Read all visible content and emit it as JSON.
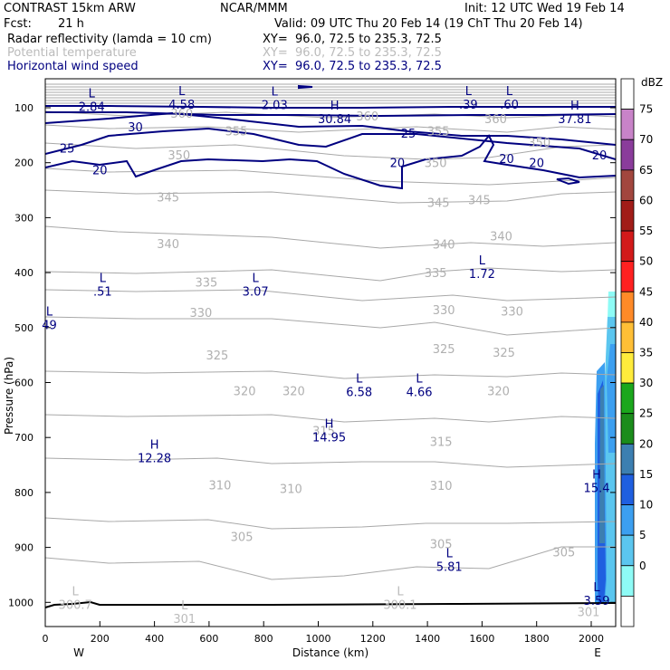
{
  "header": {
    "model": "CONTRAST 15km ARW",
    "org": "NCAR/MMM",
    "init": "Init: 12 UTC Wed 19 Feb 14",
    "fcst_label": "Fcst:",
    "fcst_value": "21 h",
    "valid": "Valid: 09 UTC Thu 20 Feb 14 (19 ChT Thu 20 Feb 14)",
    "fields": [
      {
        "name": "Radar reflectivity (lamda = 10 cm)",
        "xy": "XY=  96.0, 72.5 to 235.3, 72.5",
        "color": "#000000"
      },
      {
        "name": "Potential temperature",
        "xy": "XY=  96.0, 72.5 to 235.3, 72.5",
        "color": "#bbbbbb"
      },
      {
        "name": "Horizontal wind speed",
        "xy": "XY=  96.0, 72.5 to 235.3, 72.5",
        "color": "#000080"
      }
    ]
  },
  "chart_data": {
    "type": "cross-section",
    "xlabel": "Distance (km)",
    "ylabel": "Pressure (hPa)",
    "x_ticks": [
      "0",
      "200",
      "400",
      "600",
      "800",
      "1000",
      "1200",
      "1400",
      "1600",
      "1800",
      "2000"
    ],
    "x_end_labels": {
      "left": "W",
      "right": "E"
    },
    "y_ticks": [
      "100",
      "200",
      "300",
      "400",
      "500",
      "600",
      "700",
      "800",
      "900",
      "1000"
    ],
    "xlim": [
      0,
      2090
    ],
    "ylim": [
      1050,
      50
    ],
    "colorbar": {
      "unit": "dBZ",
      "labels": [
        "75",
        "70",
        "65",
        "60",
        "55",
        "50",
        "45",
        "40",
        "35",
        "30",
        "25",
        "20",
        "15",
        "10",
        "5",
        "0"
      ],
      "colors": [
        "#ffffff",
        "#c883c8",
        "#8a3c9b",
        "#a2463e",
        "#a11c18",
        "#d21a1a",
        "#ff2121",
        "#ff8a28",
        "#ffbf36",
        "#ffec3c",
        "#1ba71c",
        "#1b8c1b",
        "#3c7fb1",
        "#1f5fe0",
        "#3c9ff0",
        "#5bc6ef",
        "#8efbf6",
        "#ffffff"
      ]
    },
    "theta_labels": [
      {
        "text": "360",
        "x": 1180,
        "p": 115
      },
      {
        "text": "360",
        "x": 500,
        "p": 110
      },
      {
        "text": "355",
        "x": 700,
        "p": 142
      },
      {
        "text": "355",
        "x": 1440,
        "p": 142
      },
      {
        "text": "350",
        "x": 490,
        "p": 186
      },
      {
        "text": "350",
        "x": 1430,
        "p": 200
      },
      {
        "text": "350",
        "x": 1810,
        "p": 163
      },
      {
        "text": "360",
        "x": 1650,
        "p": 120
      },
      {
        "text": "345",
        "x": 450,
        "p": 262
      },
      {
        "text": "345",
        "x": 1440,
        "p": 272
      },
      {
        "text": "345",
        "x": 1590,
        "p": 267
      },
      {
        "text": "340",
        "x": 450,
        "p": 347
      },
      {
        "text": "340",
        "x": 1460,
        "p": 348
      },
      {
        "text": "340",
        "x": 1670,
        "p": 333
      },
      {
        "text": "335",
        "x": 590,
        "p": 417
      },
      {
        "text": "335",
        "x": 1430,
        "p": 400
      },
      {
        "text": "330",
        "x": 570,
        "p": 472
      },
      {
        "text": "330",
        "x": 1460,
        "p": 467
      },
      {
        "text": "330",
        "x": 1710,
        "p": 470
      },
      {
        "text": "325",
        "x": 630,
        "p": 550
      },
      {
        "text": "325",
        "x": 1460,
        "p": 538
      },
      {
        "text": "325",
        "x": 1680,
        "p": 545
      },
      {
        "text": "320",
        "x": 730,
        "p": 615
      },
      {
        "text": "320",
        "x": 910,
        "p": 615
      },
      {
        "text": "320",
        "x": 1660,
        "p": 615
      },
      {
        "text": "315",
        "x": 1020,
        "p": 687
      },
      {
        "text": "315",
        "x": 1450,
        "p": 707
      },
      {
        "text": "310",
        "x": 640,
        "p": 786
      },
      {
        "text": "310",
        "x": 900,
        "p": 793
      },
      {
        "text": "310",
        "x": 1450,
        "p": 787
      },
      {
        "text": "305",
        "x": 720,
        "p": 880
      },
      {
        "text": "305",
        "x": 1450,
        "p": 893
      },
      {
        "text": "305",
        "x": 1900,
        "p": 908
      }
    ],
    "wind_labels": [
      {
        "text": "30",
        "x": 330,
        "p": 135
      },
      {
        "text": "25",
        "x": 80,
        "p": 173
      },
      {
        "text": "20",
        "x": 200,
        "p": 213
      },
      {
        "text": "25",
        "x": 1330,
        "p": 146
      },
      {
        "text": "20",
        "x": 1290,
        "p": 200
      },
      {
        "text": "20",
        "x": 1690,
        "p": 192
      },
      {
        "text": "20",
        "x": 1800,
        "p": 200
      },
      {
        "text": "20",
        "x": 2030,
        "p": 186
      }
    ],
    "extrema": [
      {
        "letter": "L",
        "value": "2.84",
        "x": 170,
        "p": 81,
        "color": "#000080"
      },
      {
        "letter": "L",
        "value": "4.58",
        "x": 500,
        "p": 77,
        "color": "#000080"
      },
      {
        "letter": "L",
        "value": "2.03",
        "x": 840,
        "p": 78,
        "color": "#000080"
      },
      {
        "letter": "H",
        "value": "30.84",
        "x": 1060,
        "p": 103,
        "color": "#000080"
      },
      {
        "letter": "L",
        "value": ".39",
        "x": 1550,
        "p": 77,
        "color": "#000080"
      },
      {
        "letter": "L",
        "value": ".60",
        "x": 1700,
        "p": 77,
        "color": "#000080"
      },
      {
        "letter": "H",
        "value": "37.81",
        "x": 1940,
        "p": 103,
        "color": "#000080"
      },
      {
        "letter": "L",
        "value": "1.72",
        "x": 1600,
        "p": 385,
        "color": "#000080"
      },
      {
        "letter": "L",
        "value": ".51",
        "x": 210,
        "p": 417,
        "color": "#000080"
      },
      {
        "letter": "L",
        "value": "3.07",
        "x": 770,
        "p": 417,
        "color": "#000080"
      },
      {
        "letter": "L",
        "value": "49",
        "x": 15,
        "p": 478,
        "color": "#000080"
      },
      {
        "letter": "L",
        "value": "6.58",
        "x": 1150,
        "p": 600,
        "color": "#000080"
      },
      {
        "letter": "L",
        "value": "4.66",
        "x": 1370,
        "p": 600,
        "color": "#000080"
      },
      {
        "letter": "H",
        "value": "14.95",
        "x": 1040,
        "p": 682,
        "color": "#000080"
      },
      {
        "letter": "H",
        "value": "12.28",
        "x": 400,
        "p": 720,
        "color": "#000080"
      },
      {
        "letter": "H",
        "value": "15.4",
        "x": 2020,
        "p": 775,
        "color": "#000080"
      },
      {
        "letter": "L",
        "value": "5.81",
        "x": 1480,
        "p": 918,
        "color": "#000080"
      },
      {
        "letter": "L",
        "value": "3.59",
        "x": 2020,
        "p": 980,
        "color": "#000080"
      },
      {
        "letter": "L",
        "value": "300.7",
        "x": 110,
        "p": 987,
        "color": "#bbbbbb"
      },
      {
        "letter": "L",
        "value": "301",
        "x": 510,
        "p": 1013,
        "color": "#bbbbbb"
      },
      {
        "letter": "L",
        "value": "300.1",
        "x": 1300,
        "p": 987,
        "color": "#bbbbbb"
      },
      {
        "letter": "",
        "value": "301",
        "x": 1990,
        "p": 1000,
        "color": "#bbbbbb"
      }
    ]
  }
}
